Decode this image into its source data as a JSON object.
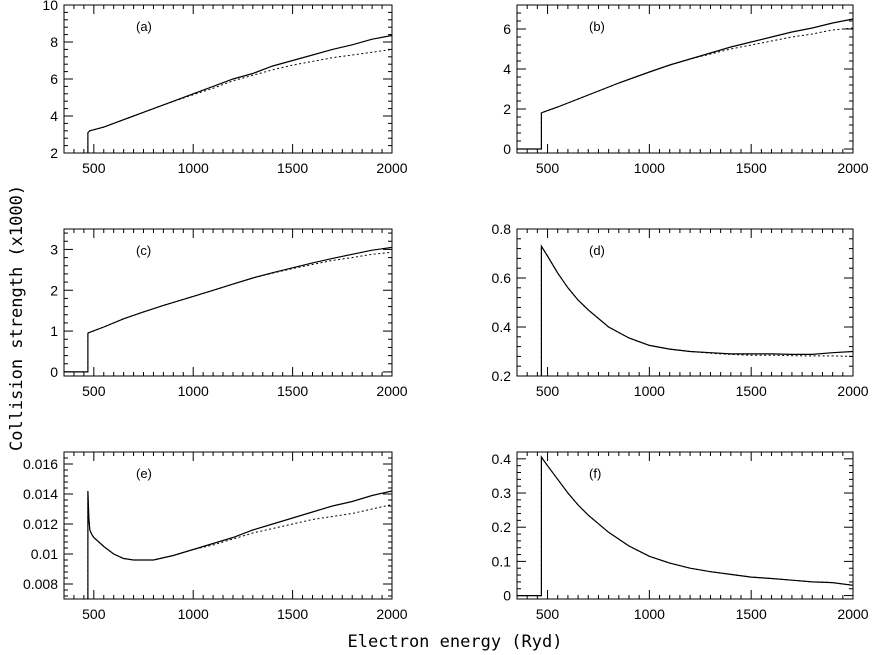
{
  "figure": {
    "xlabel": "Electron energy (Ryd)",
    "ylabel": "Collision strength (x1000)"
  },
  "chart_data": [
    {
      "type": "line",
      "panel": "(a)",
      "xlim": [
        350,
        2000
      ],
      "ylim": [
        2,
        10
      ],
      "xticks": [
        500,
        1000,
        1500,
        2000
      ],
      "xtick_labels": [
        "500",
        "1000",
        "1500",
        "2000"
      ],
      "yticks": [
        2,
        4,
        6,
        8,
        10
      ],
      "ytick_labels": [
        "2",
        "4",
        "6",
        "8",
        "10"
      ],
      "series": [
        {
          "style": "solid",
          "x": [
            470,
            470,
            480,
            550,
            650,
            750,
            850,
            1000,
            1100,
            1200,
            1300,
            1400,
            1500,
            1600,
            1700,
            1800,
            1900,
            2000
          ],
          "y": [
            2,
            3.1,
            3.2,
            3.4,
            3.8,
            4.2,
            4.6,
            5.2,
            5.6,
            6.0,
            6.3,
            6.7,
            7.0,
            7.3,
            7.6,
            7.85,
            8.15,
            8.35
          ]
        },
        {
          "style": "dotted",
          "x": [
            470,
            470,
            480,
            550,
            650,
            750,
            850,
            1000,
            1100,
            1200,
            1300,
            1400,
            1500,
            1600,
            1700,
            1800,
            1900,
            2000
          ],
          "y": [
            2,
            3.1,
            3.2,
            3.4,
            3.8,
            4.2,
            4.6,
            5.15,
            5.5,
            5.9,
            6.2,
            6.5,
            6.75,
            6.95,
            7.15,
            7.3,
            7.45,
            7.6
          ]
        }
      ]
    },
    {
      "type": "line",
      "panel": "(b)",
      "xlim": [
        350,
        2000
      ],
      "ylim": [
        -0.2,
        7.2
      ],
      "xticks": [
        500,
        1000,
        1500,
        2000
      ],
      "xtick_labels": [
        "500",
        "1000",
        "1500",
        "2000"
      ],
      "yticks": [
        0,
        2,
        4,
        6
      ],
      "ytick_labels": [
        "0",
        "2",
        "4",
        "6"
      ],
      "series": [
        {
          "style": "solid",
          "x": [
            350,
            470,
            470,
            480,
            550,
            650,
            750,
            850,
            1000,
            1100,
            1200,
            1300,
            1400,
            1500,
            1600,
            1700,
            1800,
            1900,
            2000
          ],
          "y": [
            0,
            0,
            1.8,
            1.85,
            2.1,
            2.5,
            2.9,
            3.3,
            3.85,
            4.2,
            4.5,
            4.8,
            5.1,
            5.35,
            5.6,
            5.85,
            6.05,
            6.3,
            6.5
          ]
        },
        {
          "style": "dotted",
          "x": [
            350,
            470,
            470,
            480,
            550,
            650,
            750,
            850,
            1000,
            1100,
            1200,
            1300,
            1400,
            1500,
            1600,
            1700,
            1800,
            1900,
            2000
          ],
          "y": [
            0,
            0,
            1.8,
            1.85,
            2.1,
            2.5,
            2.9,
            3.3,
            3.85,
            4.2,
            4.5,
            4.75,
            5.0,
            5.2,
            5.4,
            5.6,
            5.75,
            5.95,
            6.05
          ]
        }
      ]
    },
    {
      "type": "line",
      "panel": "(c)",
      "xlim": [
        350,
        2000
      ],
      "ylim": [
        -0.1,
        3.5
      ],
      "xticks": [
        500,
        1000,
        1500,
        2000
      ],
      "xtick_labels": [
        "500",
        "1000",
        "1500",
        "2000"
      ],
      "yticks": [
        0,
        1,
        2,
        3
      ],
      "ytick_labels": [
        "0",
        "1",
        "2",
        "3"
      ],
      "series": [
        {
          "style": "solid",
          "x": [
            350,
            470,
            470,
            480,
            550,
            650,
            750,
            850,
            1000,
            1100,
            1200,
            1300,
            1400,
            1500,
            1600,
            1700,
            1800,
            1900,
            2000
          ],
          "y": [
            0,
            0,
            0.95,
            0.97,
            1.1,
            1.3,
            1.47,
            1.63,
            1.85,
            2.0,
            2.15,
            2.3,
            2.43,
            2.55,
            2.67,
            2.78,
            2.88,
            2.98,
            3.05
          ]
        },
        {
          "style": "dotted",
          "x": [
            350,
            470,
            470,
            480,
            550,
            650,
            750,
            850,
            1000,
            1100,
            1200,
            1300,
            1400,
            1500,
            1600,
            1700,
            1800,
            1900,
            2000
          ],
          "y": [
            0,
            0,
            0.95,
            0.97,
            1.1,
            1.3,
            1.47,
            1.63,
            1.85,
            2.0,
            2.15,
            2.3,
            2.42,
            2.53,
            2.63,
            2.73,
            2.8,
            2.88,
            2.93
          ]
        }
      ]
    },
    {
      "type": "line",
      "panel": "(d)",
      "xlim": [
        350,
        2000
      ],
      "ylim": [
        0.2,
        0.8
      ],
      "xticks": [
        500,
        1000,
        1500,
        2000
      ],
      "xtick_labels": [
        "500",
        "1000",
        "1500",
        "2000"
      ],
      "yticks": [
        0.2,
        0.4,
        0.6,
        0.8
      ],
      "ytick_labels": [
        "0.2",
        "0.4",
        "0.6",
        "0.8"
      ],
      "series": [
        {
          "style": "solid",
          "x": [
            470,
            470,
            500,
            550,
            600,
            650,
            700,
            800,
            900,
            1000,
            1100,
            1200,
            1300,
            1400,
            1500,
            1600,
            1700,
            1800,
            1900,
            2000
          ],
          "y": [
            0.2,
            0.73,
            0.69,
            0.62,
            0.56,
            0.51,
            0.47,
            0.4,
            0.355,
            0.325,
            0.31,
            0.3,
            0.295,
            0.29,
            0.29,
            0.29,
            0.288,
            0.288,
            0.295,
            0.3
          ]
        },
        {
          "style": "dotted",
          "x": [
            470,
            470,
            500,
            550,
            600,
            650,
            700,
            800,
            900,
            1000,
            1100,
            1200,
            1300,
            1400,
            1500,
            1600,
            1700,
            1800,
            1900,
            2000
          ],
          "y": [
            0.2,
            0.73,
            0.69,
            0.62,
            0.56,
            0.51,
            0.47,
            0.4,
            0.355,
            0.325,
            0.31,
            0.3,
            0.293,
            0.288,
            0.285,
            0.285,
            0.283,
            0.282,
            0.282,
            0.28
          ]
        }
      ]
    },
    {
      "type": "line",
      "panel": "(e)",
      "xlim": [
        350,
        2000
      ],
      "ylim": [
        0.007,
        0.0168
      ],
      "xticks": [
        500,
        1000,
        1500,
        2000
      ],
      "xtick_labels": [
        "500",
        "1000",
        "1500",
        "2000"
      ],
      "yticks": [
        0.008,
        0.01,
        0.012,
        0.014,
        0.016
      ],
      "ytick_labels": [
        "0.008",
        "0.01",
        "0.012",
        "0.014",
        "0.016"
      ],
      "series": [
        {
          "style": "solid",
          "x": [
            470,
            470,
            475,
            480,
            490,
            500,
            550,
            600,
            650,
            700,
            800,
            900,
            1000,
            1100,
            1200,
            1300,
            1400,
            1500,
            1600,
            1700,
            1800,
            1900,
            2000
          ],
          "y": [
            0.007,
            0.0142,
            0.0125,
            0.0116,
            0.0113,
            0.0111,
            0.0105,
            0.01,
            0.0097,
            0.0096,
            0.0096,
            0.0099,
            0.0103,
            0.0107,
            0.0111,
            0.0116,
            0.012,
            0.0124,
            0.0128,
            0.0132,
            0.0135,
            0.0139,
            0.0142
          ]
        },
        {
          "style": "dotted",
          "x": [
            470,
            470,
            475,
            480,
            490,
            500,
            550,
            600,
            650,
            700,
            800,
            900,
            1000,
            1100,
            1200,
            1300,
            1400,
            1500,
            1600,
            1700,
            1800,
            1900,
            2000
          ],
          "y": [
            0.007,
            0.0142,
            0.0125,
            0.0116,
            0.0113,
            0.0111,
            0.0105,
            0.01,
            0.0097,
            0.0096,
            0.0096,
            0.0099,
            0.0103,
            0.0106,
            0.011,
            0.0114,
            0.0117,
            0.012,
            0.0123,
            0.0125,
            0.0127,
            0.013,
            0.0133
          ]
        }
      ]
    },
    {
      "type": "line",
      "panel": "(f)",
      "xlim": [
        350,
        2000
      ],
      "ylim": [
        -0.01,
        0.42
      ],
      "xticks": [
        500,
        1000,
        1500,
        2000
      ],
      "xtick_labels": [
        "500",
        "1000",
        "1500",
        "2000"
      ],
      "yticks": [
        0,
        0.1,
        0.2,
        0.3,
        0.4
      ],
      "ytick_labels": [
        "0",
        "0.1",
        "0.2",
        "0.3",
        "0.4"
      ],
      "series": [
        {
          "style": "solid",
          "x": [
            350,
            470,
            470,
            500,
            550,
            600,
            650,
            700,
            800,
            900,
            1000,
            1100,
            1200,
            1300,
            1400,
            1500,
            1600,
            1700,
            1800,
            1900,
            2000
          ],
          "y": [
            0,
            0,
            0.405,
            0.38,
            0.34,
            0.3,
            0.265,
            0.235,
            0.185,
            0.145,
            0.115,
            0.095,
            0.08,
            0.07,
            0.062,
            0.054,
            0.05,
            0.045,
            0.04,
            0.038,
            0.03
          ]
        },
        {
          "style": "dotted",
          "x": [
            350,
            470,
            470,
            500,
            550,
            600,
            650,
            700,
            800,
            900,
            1000,
            1100,
            1200,
            1300,
            1400,
            1500,
            1600,
            1700,
            1800,
            1900,
            2000
          ],
          "y": [
            0,
            0,
            0.405,
            0.38,
            0.34,
            0.3,
            0.265,
            0.235,
            0.185,
            0.145,
            0.115,
            0.095,
            0.08,
            0.07,
            0.062,
            0.054,
            0.05,
            0.045,
            0.04,
            0.038,
            0.03
          ]
        }
      ]
    }
  ]
}
